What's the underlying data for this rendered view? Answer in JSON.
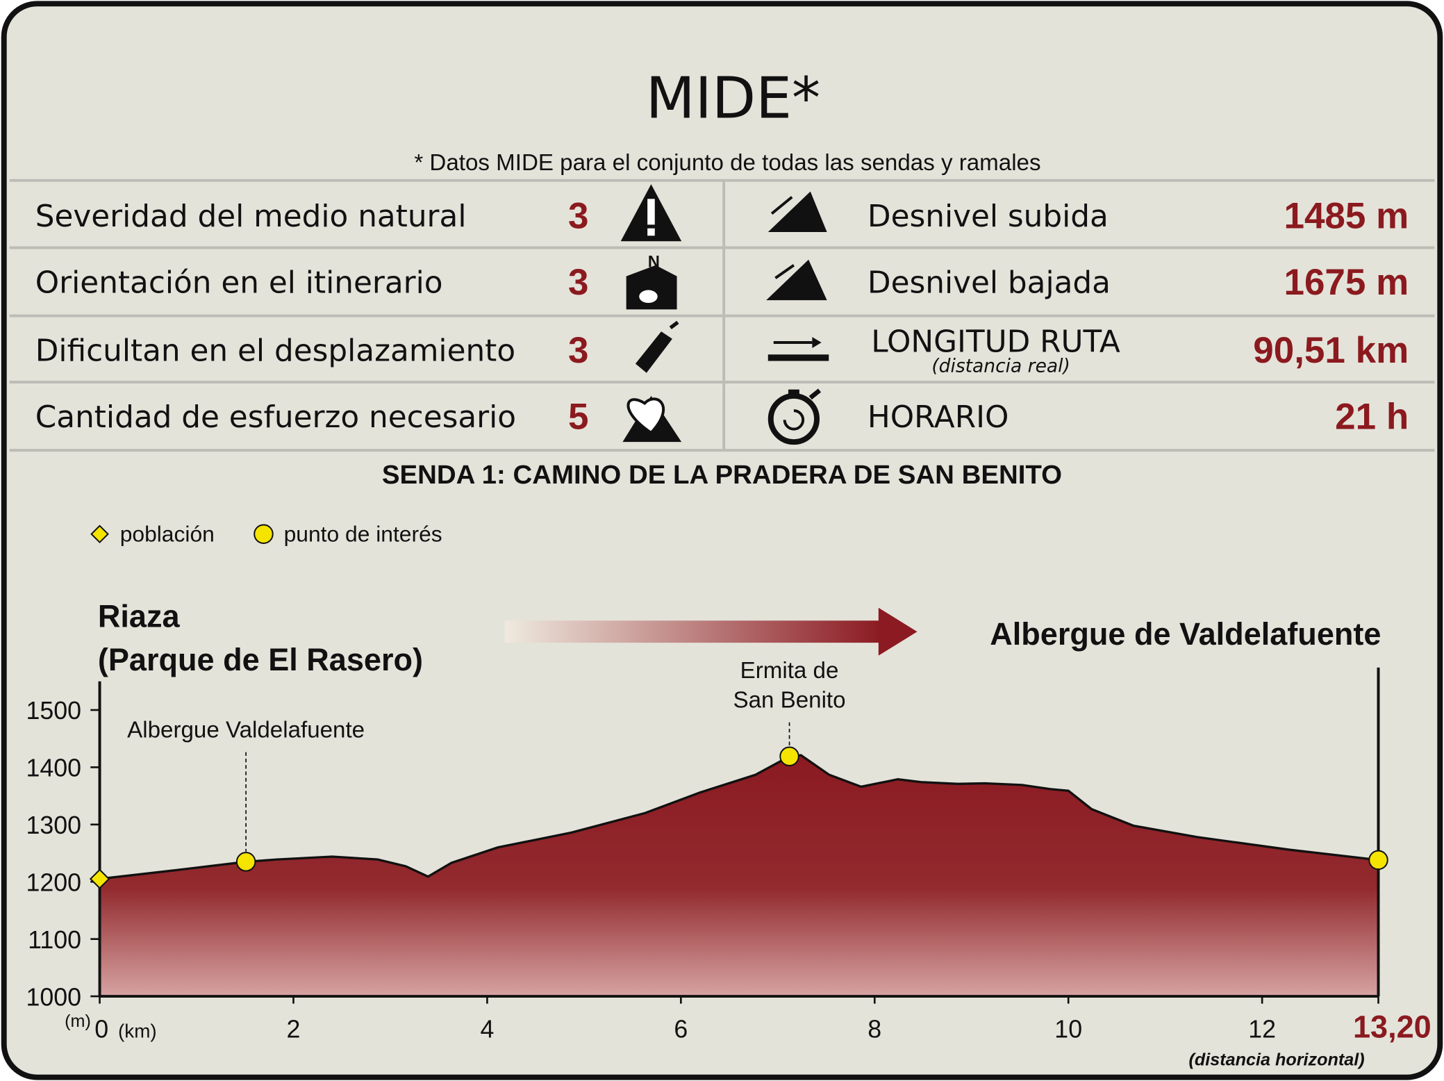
{
  "mide": {
    "title": "MIDE*",
    "note": "* Datos MIDE para el conjunto de todas las sendas y ramales",
    "criteria": [
      {
        "label": "Severidad del medio natural",
        "value": 3
      },
      {
        "label": "Orientación en el itinerario",
        "value": 3
      },
      {
        "label": "Dificultan en el desplazamiento",
        "value": 3
      },
      {
        "label": "Cantidad de esfuerzo necesario",
        "value": 5
      }
    ],
    "route": [
      {
        "label": "Desnivel subida",
        "value": "1485 m"
      },
      {
        "label": "Desnivel bajada",
        "value": "1675 m"
      },
      {
        "label": "LONGITUD RUTA",
        "sublabel": "(distancia real)",
        "value": "90,51 km"
      },
      {
        "label": "HORARIO",
        "value": "21 h"
      }
    ]
  },
  "chart_data": {
    "type": "area",
    "title": "SENDA 1: CAMINO DE LA PRADERA DE SAN BENITO",
    "start_label": [
      "Riaza",
      "(Parque de El Rasero)"
    ],
    "end_label": "Albergue de Valdelafuente",
    "x": [
      0,
      0.87,
      1.51,
      1.83,
      2.4,
      2.87,
      3.16,
      3.39,
      3.63,
      4.11,
      4.87,
      5.63,
      6.2,
      6.77,
      7.12,
      7.24,
      7.53,
      7.86,
      8.24,
      8.48,
      8.86,
      9.14,
      9.52,
      9.81,
      10.0,
      10.24,
      10.67,
      11.33,
      12.28,
      13.2
    ],
    "values": [
      1205,
      1222,
      1235,
      1239,
      1244,
      1239,
      1227,
      1209,
      1233,
      1260,
      1286,
      1320,
      1356,
      1387,
      1419,
      1421,
      1387,
      1366,
      1379,
      1374,
      1371,
      1372,
      1369,
      1362,
      1359,
      1327,
      1298,
      1278,
      1256,
      1238
    ],
    "color": "#8b1a22",
    "xlim": [
      0,
      13.2
    ],
    "ylim": [
      1000,
      1550
    ],
    "xticks": [
      0,
      2,
      4,
      6,
      8,
      10,
      12,
      {
        "value": 13.2,
        "label": "13,20"
      }
    ],
    "yticks": [
      1000,
      1100,
      1200,
      1300,
      1400,
      1500
    ],
    "x_unit": "(km)",
    "y_unit": "(m)",
    "x_note": "(distancia horizontal)",
    "legend": [
      {
        "name": "población",
        "shape": "diamond"
      },
      {
        "name": "punto de interés",
        "shape": "circle"
      }
    ],
    "marker_color": "#f5e400",
    "points": [
      {
        "x": 0,
        "y": 1205,
        "legend": 0
      },
      {
        "x": 1.51,
        "y": 1235,
        "legend": 1,
        "label": [
          "Albergue Valdelafuente"
        ]
      },
      {
        "x": 7.12,
        "y": 1419,
        "legend": 1,
        "label": [
          "Ermita de",
          "San Benito"
        ]
      },
      {
        "x": 13.2,
        "y": 1238,
        "legend": 1
      }
    ]
  }
}
